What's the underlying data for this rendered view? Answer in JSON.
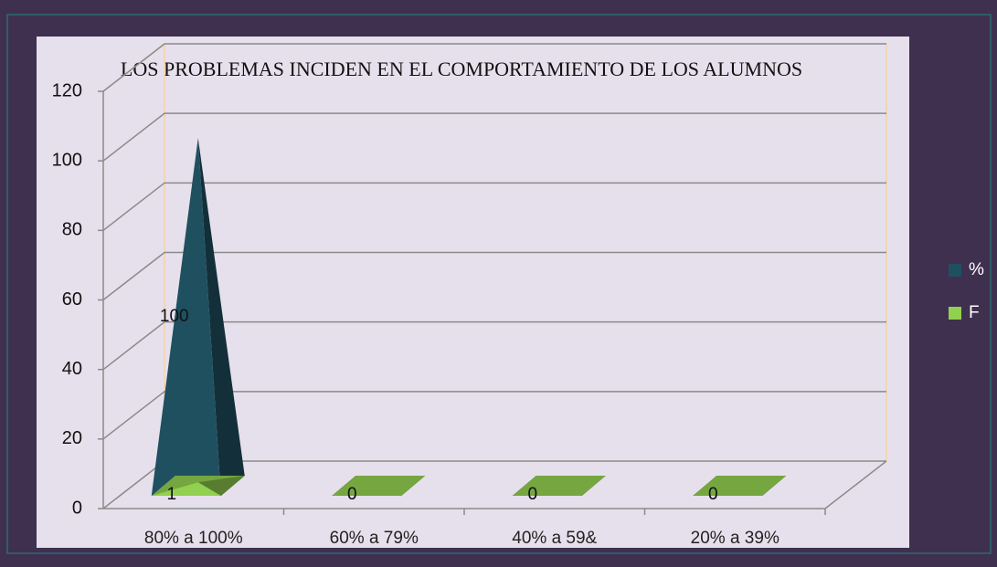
{
  "chart_data": {
    "type": "pyramid",
    "title": "LOS PROBLEMAS INCIDEN EN EL COMPORTAMIENTO DE LOS ALUMNOS",
    "categories": [
      "80% a 100%",
      "60% a 79%",
      "40% a 59&",
      "20% a 39%"
    ],
    "series": [
      {
        "name": "%",
        "color": "#1f5060",
        "values": [
          100,
          0,
          0,
          0
        ]
      },
      {
        "name": "F",
        "color": "#92d050",
        "values": [
          1,
          0,
          0,
          0
        ]
      }
    ],
    "ylim": [
      0,
      120
    ],
    "yticks": [
      0,
      20,
      40,
      60,
      80,
      100,
      120
    ],
    "grid": true
  }
}
